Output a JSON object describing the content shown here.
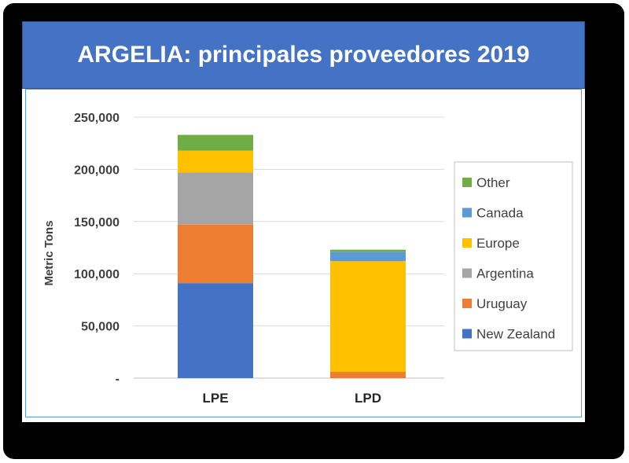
{
  "title": "ARGELIA: principales proveedores 2019",
  "colors": {
    "title_bg": "#4472C4",
    "New Zealand": "#4472C4",
    "Uruguay": "#ED7D31",
    "Argentina": "#A5A5A5",
    "Europe": "#FFC000",
    "Canada": "#5B9BD5",
    "Other": "#70AD47"
  },
  "chart_data": {
    "type": "bar",
    "stacked": true,
    "title": "ARGELIA: principales proveedores 2019",
    "xlabel": "",
    "ylabel": "Metric Tons",
    "ylim": [
      0,
      250000
    ],
    "yticks": [
      0,
      50000,
      100000,
      150000,
      200000,
      250000
    ],
    "ytick_labels": [
      "-",
      "50,000",
      "100,000",
      "150,000",
      "200,000",
      "250,000"
    ],
    "grid": true,
    "legend_position": "right",
    "categories": [
      "LPE",
      "LPD"
    ],
    "series": [
      {
        "name": "New Zealand",
        "values": [
          91000,
          0
        ]
      },
      {
        "name": "Uruguay",
        "values": [
          56000,
          6000
        ]
      },
      {
        "name": "Argentina",
        "values": [
          50000,
          0
        ]
      },
      {
        "name": "Europe",
        "values": [
          21000,
          106000
        ]
      },
      {
        "name": "Canada",
        "values": [
          0,
          9000
        ]
      },
      {
        "name": "Other",
        "values": [
          15000,
          2000
        ]
      }
    ]
  }
}
